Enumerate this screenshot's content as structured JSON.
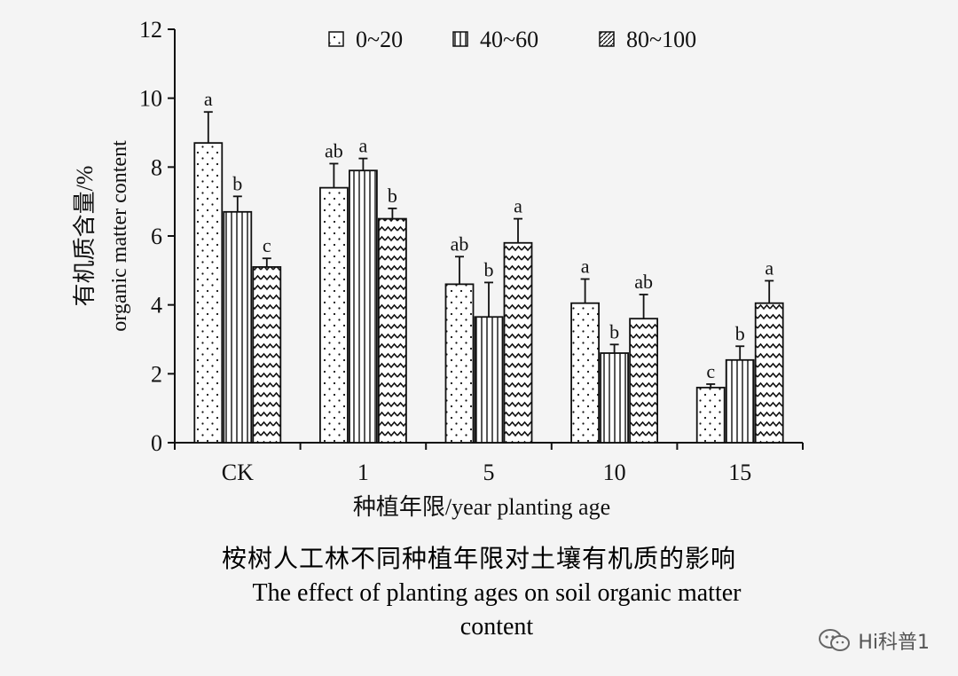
{
  "chart_data": {
    "type": "bar",
    "categories": [
      "CK",
      "1",
      "5",
      "10",
      "15"
    ],
    "series": [
      {
        "name": "0~20",
        "pattern": "dots",
        "values": [
          8.7,
          7.4,
          4.6,
          4.05,
          1.6
        ],
        "errors": [
          0.9,
          0.7,
          0.8,
          0.7,
          0.1
        ],
        "letters": [
          "a",
          "ab",
          "ab",
          "a",
          "c"
        ]
      },
      {
        "name": "40~60",
        "pattern": "vlines",
        "values": [
          6.7,
          7.9,
          3.65,
          2.6,
          2.4
        ],
        "errors": [
          0.45,
          0.35,
          1.0,
          0.25,
          0.4
        ],
        "letters": [
          "b",
          "a",
          "b",
          "b",
          "b"
        ]
      },
      {
        "name": "80~100",
        "pattern": "zigzag",
        "values": [
          5.1,
          6.5,
          5.8,
          3.6,
          4.05
        ],
        "errors": [
          0.25,
          0.3,
          0.7,
          0.7,
          0.65
        ],
        "letters": [
          "c",
          "b",
          "a",
          "ab",
          "a"
        ]
      }
    ],
    "xlabel": "种植年限/year planting age",
    "ylabel_cn": "有机质含量/%",
    "ylabel_en": "organic matter content",
    "ylim": [
      0,
      12
    ],
    "yticks": [
      0,
      2,
      4,
      6,
      8,
      10,
      12
    ],
    "legend_position": "top",
    "grid": false
  },
  "caption": {
    "cn": "桉树人工林不同种植年限对土壤有机质的影响",
    "en": "The effect of planting ages on soil organic matter content"
  },
  "watermark": {
    "text": "Hi科普1",
    "icon": "wechat-icon"
  }
}
